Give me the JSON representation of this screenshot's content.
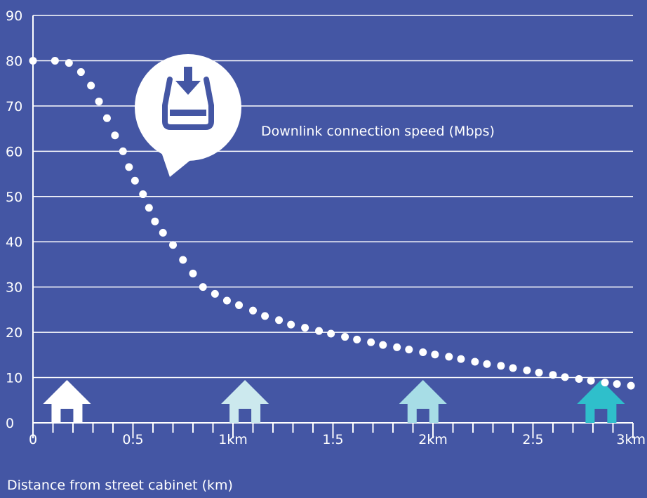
{
  "chart_data": {
    "type": "scatter",
    "series_label": "Downlink connection speed (Mbps)",
    "xlabel": "Distance from street cabinet (km)",
    "ylabel": "",
    "xlim": [
      0,
      3
    ],
    "ylim": [
      0,
      90
    ],
    "grid": true,
    "x_ticks": [
      {
        "value": 0,
        "label": "0"
      },
      {
        "value": 0.5,
        "label": "0.5"
      },
      {
        "value": 1,
        "label": "1km"
      },
      {
        "value": 1.5,
        "label": "1.5"
      },
      {
        "value": 2,
        "label": "2km"
      },
      {
        "value": 2.5,
        "label": "2.5"
      },
      {
        "value": 3,
        "label": "3km"
      }
    ],
    "y_ticks": [
      {
        "value": 0,
        "label": "0"
      },
      {
        "value": 10,
        "label": "10"
      },
      {
        "value": 20,
        "label": "20"
      },
      {
        "value": 30,
        "label": "30"
      },
      {
        "value": 40,
        "label": "40"
      },
      {
        "value": 50,
        "label": "50"
      },
      {
        "value": 60,
        "label": "60"
      },
      {
        "value": 70,
        "label": "70"
      },
      {
        "value": 80,
        "label": "80"
      },
      {
        "value": 90,
        "label": "90"
      }
    ],
    "points": [
      [
        0.0,
        80.0
      ],
      [
        0.11,
        80.0
      ],
      [
        0.18,
        79.5
      ],
      [
        0.24,
        77.5
      ],
      [
        0.29,
        74.5
      ],
      [
        0.33,
        71.0
      ],
      [
        0.37,
        67.3
      ],
      [
        0.41,
        63.5
      ],
      [
        0.45,
        60.0
      ],
      [
        0.48,
        56.5
      ],
      [
        0.51,
        53.5
      ],
      [
        0.55,
        50.5
      ],
      [
        0.58,
        47.5
      ],
      [
        0.61,
        44.5
      ],
      [
        0.65,
        42.0
      ],
      [
        0.7,
        39.3
      ],
      [
        0.75,
        36.0
      ],
      [
        0.8,
        33.0
      ],
      [
        0.85,
        30.0
      ],
      [
        0.91,
        28.5
      ],
      [
        0.97,
        27.0
      ],
      [
        1.03,
        26.0
      ],
      [
        1.1,
        24.8
      ],
      [
        1.16,
        23.6
      ],
      [
        1.23,
        22.7
      ],
      [
        1.29,
        21.7
      ],
      [
        1.36,
        21.0
      ],
      [
        1.43,
        20.3
      ],
      [
        1.49,
        19.7
      ],
      [
        1.56,
        19.0
      ],
      [
        1.62,
        18.4
      ],
      [
        1.69,
        17.8
      ],
      [
        1.75,
        17.2
      ],
      [
        1.82,
        16.7
      ],
      [
        1.88,
        16.2
      ],
      [
        1.95,
        15.6
      ],
      [
        2.01,
        15.1
      ],
      [
        2.08,
        14.6
      ],
      [
        2.14,
        14.1
      ],
      [
        2.21,
        13.5
      ],
      [
        2.27,
        13.0
      ],
      [
        2.34,
        12.6
      ],
      [
        2.4,
        12.1
      ],
      [
        2.47,
        11.6
      ],
      [
        2.53,
        11.1
      ],
      [
        2.6,
        10.6
      ],
      [
        2.66,
        10.1
      ],
      [
        2.73,
        9.7
      ],
      [
        2.79,
        9.3
      ],
      [
        2.86,
        8.9
      ],
      [
        2.92,
        8.6
      ],
      [
        2.99,
        8.2
      ]
    ],
    "markers": [
      {
        "name": "house",
        "x": 0.17,
        "color": "#ffffff"
      },
      {
        "name": "house",
        "x": 1.06,
        "color": "#cce9ee"
      },
      {
        "name": "house",
        "x": 1.95,
        "color": "#a7dde6"
      },
      {
        "name": "house",
        "x": 2.84,
        "color": "#2fbfcb"
      }
    ],
    "colors": {
      "background": "#4456a4",
      "grid": "#ffffff",
      "points": "#ffffff"
    },
    "icons": [
      "download-bubble-icon",
      "house-icon"
    ]
  }
}
